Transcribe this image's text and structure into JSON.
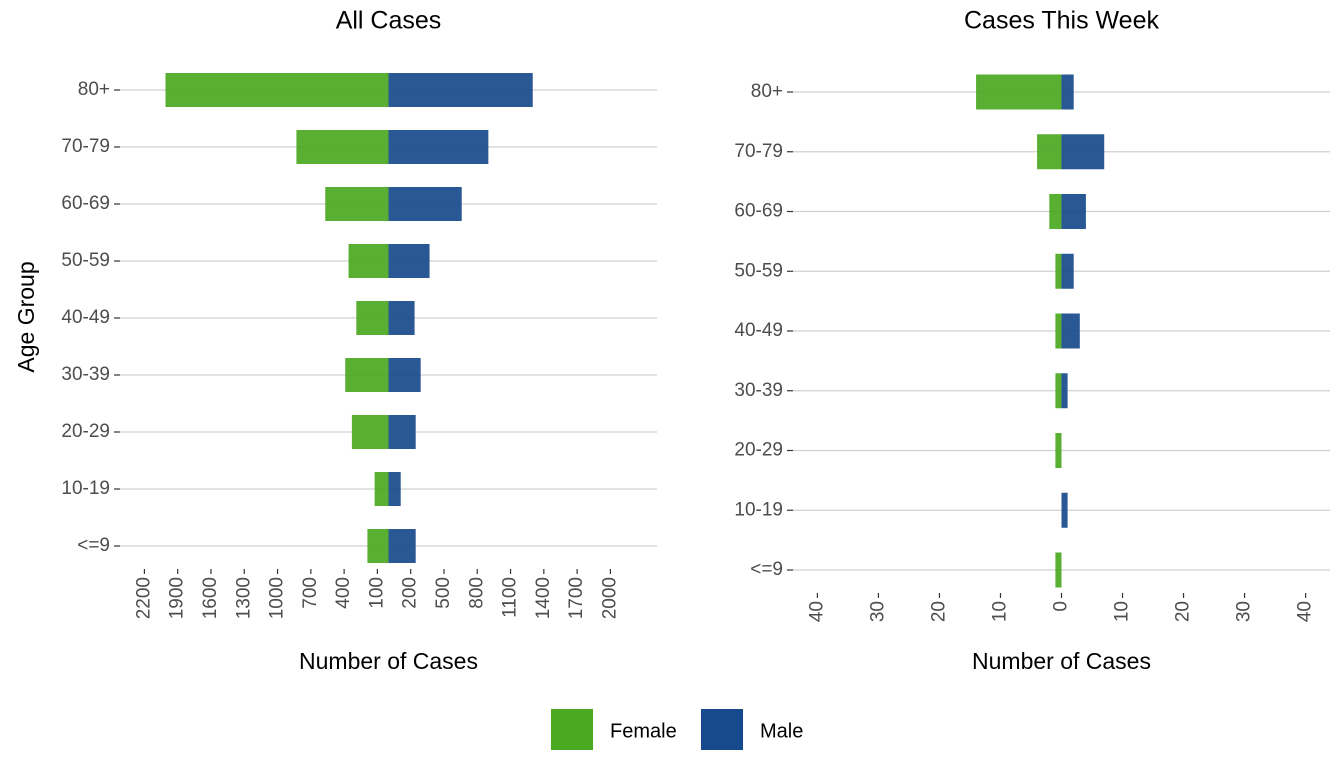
{
  "chart_data": [
    {
      "type": "bar",
      "orientation": "horizontal",
      "stacked": "diverging",
      "title": "All Cases",
      "x_label": "Number of Cases",
      "y_label": "Age Group",
      "categories": [
        "80+",
        "70-79",
        "60-69",
        "50-59",
        "40-49",
        "30-39",
        "20-29",
        "10-19",
        "<=9"
      ],
      "series": [
        {
          "name": "Female",
          "color": "#4aa821",
          "values": [
            -2010,
            -830,
            -570,
            -360,
            -290,
            -390,
            -330,
            -125,
            -190
          ]
        },
        {
          "name": "Male",
          "color": "#174a8c",
          "values": [
            1300,
            900,
            660,
            370,
            235,
            290,
            245,
            110,
            245
          ]
        }
      ],
      "xlim": [
        -2420,
        2420
      ],
      "xticks": [
        {
          "value": -2200,
          "label": "2200"
        },
        {
          "value": -1900,
          "label": "1900"
        },
        {
          "value": -1600,
          "label": "1600"
        },
        {
          "value": -1300,
          "label": "1300"
        },
        {
          "value": -1000,
          "label": "1000"
        },
        {
          "value": -700,
          "label": "700"
        },
        {
          "value": -400,
          "label": "400"
        },
        {
          "value": -100,
          "label": "100"
        },
        200,
        500,
        800,
        1100,
        1400,
        1700,
        2000
      ],
      "grid": true
    },
    {
      "type": "bar",
      "orientation": "horizontal",
      "stacked": "diverging",
      "title": "Cases This Week",
      "x_label": "Number of Cases",
      "categories": [
        "80+",
        "70-79",
        "60-69",
        "50-59",
        "40-49",
        "30-39",
        "20-29",
        "10-19",
        "<=9"
      ],
      "series": [
        {
          "name": "Female",
          "color": "#4aa821",
          "values": [
            -14,
            -4,
            -2,
            -1,
            -1,
            -1,
            -1,
            0,
            -1
          ]
        },
        {
          "name": "Male",
          "color": "#174a8c",
          "values": [
            2,
            7,
            4,
            2,
            3,
            1,
            0,
            1,
            0
          ]
        }
      ],
      "xlim": [
        -44,
        44
      ],
      "xticks": [
        {
          "value": -40,
          "label": "40"
        },
        {
          "value": -30,
          "label": "30"
        },
        {
          "value": -20,
          "label": "20"
        },
        {
          "value": -10,
          "label": "10"
        },
        0,
        10,
        20,
        30,
        40
      ],
      "grid": true
    }
  ]
}
